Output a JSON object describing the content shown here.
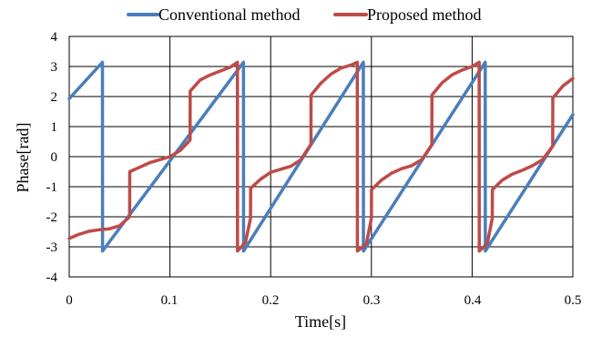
{
  "chart_data": {
    "type": "line",
    "xlabel": "Time[s]",
    "ylabel": "Phase[rad]",
    "xlim": [
      0,
      0.5
    ],
    "ylim": [
      -4,
      4
    ],
    "x_ticks": [
      "0",
      "0.1",
      "0.2",
      "0.3",
      "0.4",
      "0.5"
    ],
    "y_ticks": [
      "4",
      "3",
      "2",
      "1",
      "0",
      "-1",
      "-2",
      "-3",
      "-4"
    ],
    "grid": true,
    "legend_position": "top",
    "series": [
      {
        "name": "Conventional method",
        "color": "#4a7ebb",
        "points": [
          [
            0,
            1.93
          ],
          [
            0.033,
            3.14
          ],
          [
            0.0331,
            -3.14
          ],
          [
            0.173,
            3.14
          ],
          [
            0.1731,
            -3.14
          ],
          [
            0.292,
            3.14
          ],
          [
            0.2921,
            -3.14
          ],
          [
            0.413,
            3.14
          ],
          [
            0.4131,
            -3.14
          ],
          [
            0.5,
            1.4
          ]
        ]
      },
      {
        "name": "Proposed method",
        "color": "#be4b48",
        "points": [
          [
            0,
            -2.72
          ],
          [
            0.01,
            -2.58
          ],
          [
            0.02,
            -2.48
          ],
          [
            0.03,
            -2.43
          ],
          [
            0.04,
            -2.4
          ],
          [
            0.05,
            -2.3
          ],
          [
            0.06,
            -2.0
          ],
          [
            0.0601,
            -0.5
          ],
          [
            0.07,
            -0.35
          ],
          [
            0.08,
            -0.2
          ],
          [
            0.09,
            -0.1
          ],
          [
            0.1,
            0.0
          ],
          [
            0.11,
            0.2
          ],
          [
            0.12,
            0.55
          ],
          [
            0.1201,
            2.18
          ],
          [
            0.13,
            2.55
          ],
          [
            0.14,
            2.72
          ],
          [
            0.15,
            2.85
          ],
          [
            0.16,
            2.98
          ],
          [
            0.167,
            3.14
          ],
          [
            0.1671,
            -3.14
          ],
          [
            0.175,
            -2.85
          ],
          [
            0.18,
            -2.05
          ],
          [
            0.1801,
            -1.05
          ],
          [
            0.19,
            -0.75
          ],
          [
            0.2,
            -0.52
          ],
          [
            0.21,
            -0.42
          ],
          [
            0.22,
            -0.32
          ],
          [
            0.23,
            -0.1
          ],
          [
            0.24,
            0.42
          ],
          [
            0.2401,
            2.05
          ],
          [
            0.25,
            2.45
          ],
          [
            0.26,
            2.75
          ],
          [
            0.27,
            2.95
          ],
          [
            0.28,
            3.05
          ],
          [
            0.286,
            3.14
          ],
          [
            0.2861,
            -3.14
          ],
          [
            0.295,
            -2.9
          ],
          [
            0.3,
            -2.05
          ],
          [
            0.3001,
            -1.1
          ],
          [
            0.31,
            -0.78
          ],
          [
            0.32,
            -0.55
          ],
          [
            0.33,
            -0.4
          ],
          [
            0.34,
            -0.3
          ],
          [
            0.35,
            -0.1
          ],
          [
            0.36,
            0.4
          ],
          [
            0.3601,
            2.05
          ],
          [
            0.37,
            2.45
          ],
          [
            0.38,
            2.72
          ],
          [
            0.39,
            2.88
          ],
          [
            0.4,
            3.0
          ],
          [
            0.407,
            3.14
          ],
          [
            0.4071,
            -3.14
          ],
          [
            0.415,
            -2.9
          ],
          [
            0.42,
            -2.05
          ],
          [
            0.4201,
            -1.1
          ],
          [
            0.43,
            -0.78
          ],
          [
            0.44,
            -0.58
          ],
          [
            0.45,
            -0.45
          ],
          [
            0.46,
            -0.3
          ],
          [
            0.47,
            -0.1
          ],
          [
            0.48,
            0.35
          ],
          [
            0.4801,
            1.95
          ],
          [
            0.49,
            2.35
          ],
          [
            0.5,
            2.6
          ]
        ]
      }
    ]
  }
}
